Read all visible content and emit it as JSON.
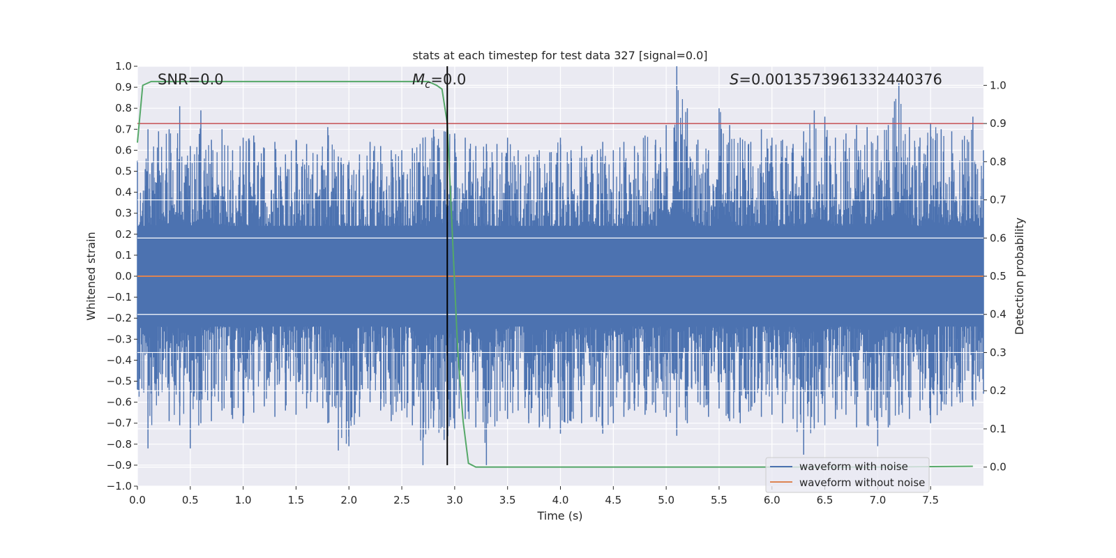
{
  "chart_data": {
    "type": "line",
    "title": "stats at each timestep for test data 327 [signal=0.0]",
    "xlabel": "Time (s)",
    "ylabel_left": "Whitened strain",
    "ylabel_right": "Detection probability",
    "xlim": [
      0.0,
      8.0
    ],
    "ylim_left": [
      -1.0,
      1.0
    ],
    "ylim_right": [
      -0.05,
      1.05
    ],
    "x_ticks": [
      "0.0",
      "0.5",
      "1.0",
      "1.5",
      "2.0",
      "2.5",
      "3.0",
      "3.5",
      "4.0",
      "4.5",
      "5.0",
      "5.5",
      "6.0",
      "6.5",
      "7.0",
      "7.5"
    ],
    "y_ticks_left": [
      "1.0",
      "0.9",
      "0.8",
      "0.7",
      "0.6",
      "0.5",
      "0.4",
      "0.3",
      "0.2",
      "0.1",
      "0.0",
      "-0.1",
      "-0.2",
      "-0.3",
      "-0.4",
      "-0.5",
      "-0.6",
      "-0.7",
      "-0.8",
      "-0.9",
      "-1.0"
    ],
    "y_ticks_right": [
      "1.0",
      "0.9",
      "0.8",
      "0.7",
      "0.6",
      "0.5",
      "0.4",
      "0.3",
      "0.2",
      "0.1",
      "0.0"
    ],
    "annotations": {
      "snr": "SNR=0.0",
      "mc_symbol": "M",
      "mc_sub": "c",
      "mc_value": "=0.0",
      "s_symbol": "S",
      "s_value": "=0.0013573961332440376"
    },
    "grid": true,
    "legend_position": "lower right",
    "legend": [
      {
        "label": "waveform with noise",
        "color": "#4c72b0"
      },
      {
        "label": "waveform without noise",
        "color": "#dd8452"
      }
    ],
    "series": [
      {
        "name": "waveform with noise",
        "axis": "left",
        "color": "#4c72b0",
        "envelope_note_visible": false,
        "x": [
          0.0,
          0.1,
          0.2,
          0.3,
          0.4,
          0.5,
          0.6,
          0.7,
          0.8,
          0.9,
          1.0,
          1.1,
          1.2,
          1.3,
          1.4,
          1.5,
          1.6,
          1.7,
          1.8,
          1.9,
          2.0,
          2.1,
          2.2,
          2.3,
          2.4,
          2.5,
          2.6,
          2.7,
          2.8,
          2.9,
          3.0,
          3.1,
          3.2,
          3.3,
          3.4,
          3.5,
          3.6,
          3.7,
          3.8,
          3.9,
          4.0,
          4.1,
          4.2,
          4.3,
          4.4,
          4.5,
          4.6,
          4.7,
          4.8,
          4.9,
          5.0,
          5.1,
          5.2,
          5.3,
          5.4,
          5.5,
          5.6,
          5.7,
          5.8,
          5.9,
          6.0,
          6.1,
          6.2,
          6.3,
          6.4,
          6.5,
          6.6,
          6.7,
          6.8,
          6.9,
          7.0,
          7.1,
          7.2,
          7.3,
          7.4,
          7.5,
          7.6,
          7.7,
          7.8,
          7.9,
          8.0
        ],
        "upper": [
          0.55,
          0.7,
          0.69,
          0.7,
          0.81,
          0.62,
          0.79,
          0.65,
          0.7,
          0.6,
          0.66,
          0.67,
          0.61,
          0.64,
          0.58,
          0.65,
          0.63,
          0.58,
          0.71,
          0.57,
          0.55,
          0.58,
          0.64,
          0.62,
          0.6,
          0.6,
          0.61,
          0.66,
          0.7,
          0.69,
          0.68,
          0.66,
          0.62,
          0.63,
          0.63,
          0.66,
          0.6,
          0.58,
          0.6,
          0.59,
          0.66,
          0.6,
          0.62,
          0.58,
          0.64,
          0.6,
          0.64,
          0.62,
          0.67,
          0.65,
          0.72,
          1.0,
          0.8,
          0.65,
          0.6,
          0.8,
          0.72,
          0.66,
          0.64,
          0.7,
          0.66,
          0.65,
          0.63,
          0.69,
          0.79,
          0.76,
          0.66,
          0.68,
          0.72,
          0.71,
          0.67,
          0.72,
          0.92,
          0.71,
          0.66,
          0.73,
          0.7,
          0.69,
          0.65,
          0.76,
          0.6
        ],
        "lower": [
          -0.54,
          -0.82,
          -0.57,
          -0.69,
          -0.71,
          -0.82,
          -0.7,
          -0.69,
          -0.64,
          -0.68,
          -0.7,
          -0.65,
          -0.62,
          -0.67,
          -0.64,
          -0.66,
          -0.63,
          -0.6,
          -0.7,
          -0.83,
          -0.81,
          -0.67,
          -0.6,
          -0.64,
          -0.69,
          -0.64,
          -0.71,
          -0.9,
          -0.72,
          -0.78,
          -0.73,
          -0.68,
          -0.72,
          -0.9,
          -0.69,
          -0.68,
          -0.64,
          -0.7,
          -0.72,
          -0.73,
          -0.75,
          -0.69,
          -0.7,
          -0.67,
          -0.75,
          -0.7,
          -0.67,
          -0.64,
          -0.66,
          -0.65,
          -0.67,
          -0.76,
          -0.7,
          -0.6,
          -0.67,
          -0.63,
          -0.69,
          -0.7,
          -0.64,
          -0.67,
          -0.66,
          -0.7,
          -0.68,
          -0.85,
          -0.73,
          -0.71,
          -0.68,
          -0.66,
          -0.72,
          -0.71,
          -0.81,
          -0.72,
          -0.66,
          -0.68,
          -0.64,
          -0.7,
          -0.64,
          -0.62,
          -0.6,
          -0.62,
          -0.56
        ]
      },
      {
        "name": "waveform without noise",
        "axis": "left",
        "color": "#dd8452",
        "x": [
          0.0,
          8.0
        ],
        "y": [
          0.0,
          0.0
        ]
      },
      {
        "axis": "right",
        "color": "#55a868",
        "x": [
          0.0,
          0.05,
          0.13,
          0.5,
          1.0,
          1.5,
          2.0,
          2.5,
          2.75,
          2.83,
          2.88,
          2.93,
          2.98,
          3.03,
          3.08,
          3.13,
          3.2,
          3.3,
          4.0,
          5.0,
          6.0,
          7.0,
          7.9
        ],
        "y": [
          0.85,
          1.0,
          1.01,
          1.01,
          1.01,
          1.01,
          1.01,
          1.01,
          1.01,
          1.0,
          0.99,
          0.9,
          0.6,
          0.3,
          0.12,
          0.01,
          0.0,
          0.0,
          0.0,
          0.0,
          0.0,
          0.0,
          0.002
        ]
      }
    ],
    "threshold": {
      "axis": "right",
      "y": 0.9,
      "color": "#c44e52"
    },
    "vline": {
      "x": 2.93,
      "ymin": -0.9,
      "ymax": 1.0,
      "color": "#000000"
    }
  }
}
